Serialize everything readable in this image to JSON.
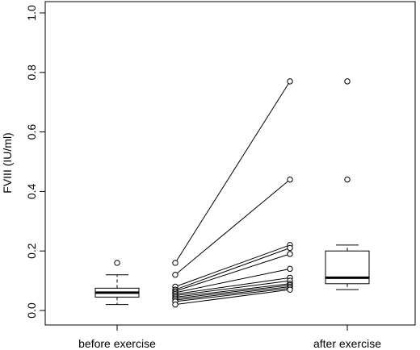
{
  "chart_data": {
    "type": "box-and-paired-line",
    "title": "",
    "ylabel": "FVIII (IU/ml)",
    "xlabel": "",
    "ylim": [
      0,
      1.0
    ],
    "yticks": [
      "0.0",
      "0.2",
      "0.4",
      "0.6",
      "0.8",
      "1.0"
    ],
    "grid": false,
    "categories": [
      "before exercise",
      "after exercise"
    ],
    "boxplots": [
      {
        "group": "before exercise",
        "min": 0.02,
        "q1": 0.045,
        "median": 0.06,
        "q3": 0.075,
        "max": 0.12,
        "outliers": [
          0.16
        ]
      },
      {
        "group": "after exercise",
        "min": 0.07,
        "q1": 0.09,
        "median": 0.11,
        "q3": 0.2,
        "max": 0.22,
        "outliers": [
          0.44,
          0.77
        ]
      }
    ],
    "paired": [
      {
        "before": 0.16,
        "after": 0.77
      },
      {
        "before": 0.12,
        "after": 0.44
      },
      {
        "before": 0.08,
        "after": 0.22
      },
      {
        "before": 0.07,
        "after": 0.21
      },
      {
        "before": 0.065,
        "after": 0.19
      },
      {
        "before": 0.06,
        "after": 0.14
      },
      {
        "before": 0.055,
        "after": 0.11
      },
      {
        "before": 0.05,
        "after": 0.1
      },
      {
        "before": 0.045,
        "after": 0.09
      },
      {
        "before": 0.04,
        "after": 0.085
      },
      {
        "before": 0.035,
        "after": 0.08
      },
      {
        "before": 0.03,
        "after": 0.075
      },
      {
        "before": 0.02,
        "after": 0.07
      }
    ]
  }
}
